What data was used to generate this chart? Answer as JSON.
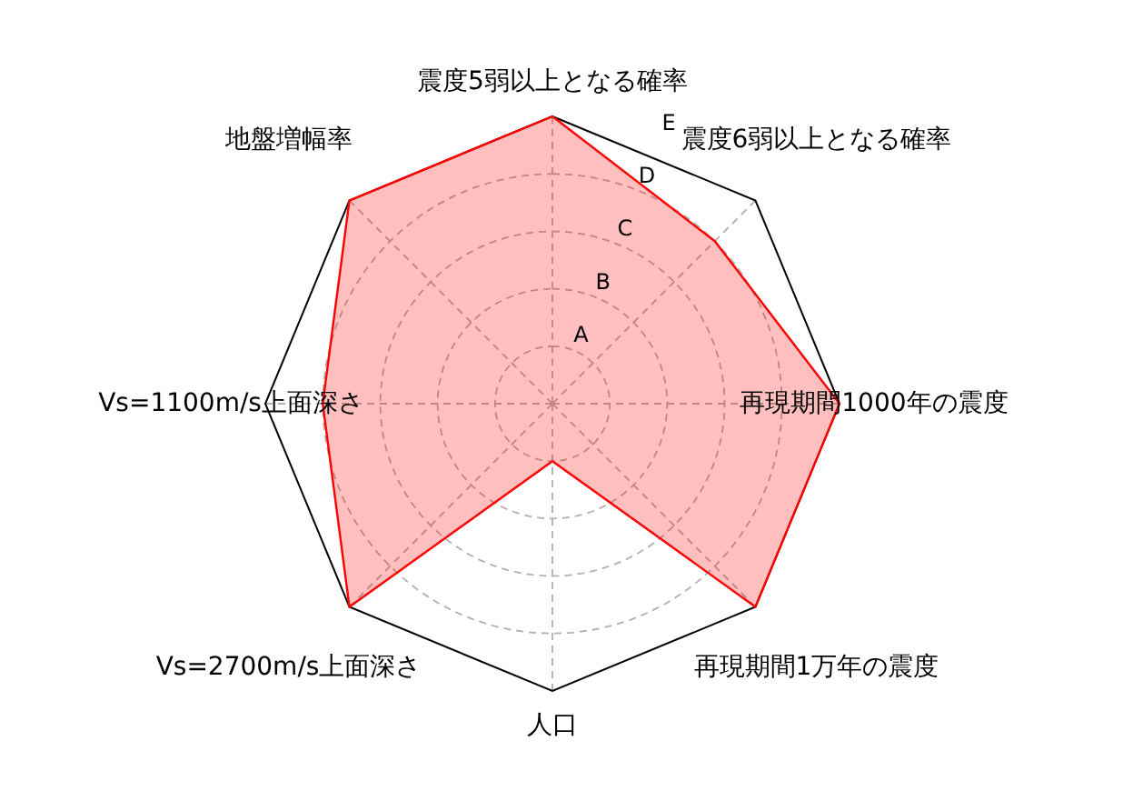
{
  "chart_data": {
    "type": "radar",
    "categories": [
      "震度5弱以上となる確率",
      "震度6弱以上となる確率",
      "再現期間1000年の震度",
      "再現期間1万年の震度",
      "人口",
      "Vs=2700m/s上面深さ",
      "Vs=1100m/s上面深さ",
      "地盤増幅率"
    ],
    "series": [
      {
        "color": "#ff0000",
        "values": [
          5,
          4,
          5,
          5,
          1,
          5,
          4,
          5
        ]
      }
    ],
    "ylim": [
      0,
      5
    ],
    "yticks": [
      {
        "value": 1,
        "label": "A"
      },
      {
        "value": 2,
        "label": "B"
      },
      {
        "value": 3,
        "label": "C"
      },
      {
        "value": 4,
        "label": "D"
      },
      {
        "value": 5,
        "label": "E"
      }
    ],
    "grid": true
  }
}
